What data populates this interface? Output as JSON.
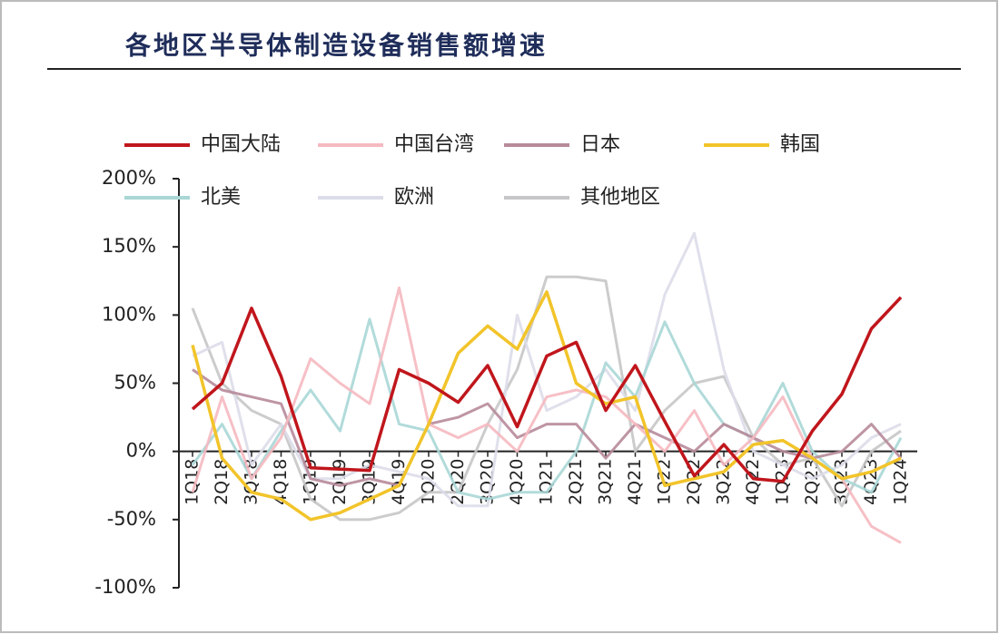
{
  "chart_data": {
    "type": "line",
    "title": "各地区半导体制造设备销售额增速",
    "categories": [
      "1Q18",
      "2Q18",
      "3Q18",
      "4Q18",
      "1Q19",
      "2Q19",
      "3Q19",
      "4Q19",
      "1Q20",
      "2Q20",
      "3Q20",
      "4Q20",
      "1Q21",
      "2Q21",
      "3Q21",
      "4Q21",
      "1Q22",
      "2Q22",
      "3Q22",
      "4Q22",
      "1Q23",
      "2Q23",
      "3Q23",
      "4Q23",
      "1Q24"
    ],
    "ylim": [
      -100,
      200
    ],
    "yticks": [
      {
        "value": -100,
        "label": "-100%"
      },
      {
        "value": -50,
        "label": "-50%"
      },
      {
        "value": 0,
        "label": "0%"
      },
      {
        "value": 50,
        "label": "50%"
      },
      {
        "value": 100,
        "label": "100%"
      },
      {
        "value": 150,
        "label": "150%"
      },
      {
        "value": 200,
        "label": "200%"
      }
    ],
    "series": [
      {
        "name": "中国大陆",
        "color": "#c0161c",
        "values": [
          31,
          50,
          105,
          55,
          -12,
          -13,
          -14,
          60,
          50,
          36,
          63,
          18,
          70,
          80,
          30,
          63,
          22,
          -18,
          5,
          -20,
          -22,
          15,
          42,
          90,
          113
        ]
      },
      {
        "name": "中国台湾",
        "color": "#f5b9c0",
        "values": [
          -30,
          40,
          -20,
          10,
          68,
          50,
          35,
          120,
          20,
          10,
          20,
          0,
          40,
          45,
          40,
          20,
          0,
          30,
          -10,
          10,
          40,
          -5,
          -20,
          -55,
          -67
        ]
      },
      {
        "name": "日本",
        "color": "#b78a9a",
        "values": [
          60,
          45,
          40,
          35,
          -20,
          -25,
          -20,
          -25,
          20,
          25,
          35,
          10,
          20,
          20,
          -5,
          20,
          10,
          0,
          20,
          10,
          0,
          -5,
          0,
          20,
          -5
        ]
      },
      {
        "name": "韩国",
        "color": "#f2c42a",
        "values": [
          78,
          -5,
          -30,
          -35,
          -50,
          -45,
          -35,
          -25,
          20,
          72,
          92,
          75,
          117,
          50,
          35,
          40,
          -25,
          -20,
          -15,
          5,
          8,
          -5,
          -20,
          -15,
          -5
        ]
      },
      {
        "name": "北美",
        "color": "#a9d7d6",
        "values": [
          -10,
          20,
          -20,
          15,
          45,
          15,
          97,
          20,
          15,
          -30,
          -35,
          -30,
          -30,
          0,
          65,
          40,
          95,
          50,
          20,
          10,
          50,
          0,
          -20,
          -30,
          10
        ]
      },
      {
        "name": "欧洲",
        "color": "#dcdde9",
        "values": [
          70,
          80,
          -10,
          20,
          -20,
          -20,
          -10,
          -15,
          -20,
          -40,
          -40,
          100,
          30,
          40,
          60,
          30,
          115,
          160,
          60,
          0,
          -10,
          -20,
          -10,
          10,
          20
        ]
      },
      {
        "name": "其他地区",
        "color": "#c6c6c8",
        "values": [
          105,
          50,
          30,
          20,
          -35,
          -50,
          -50,
          -45,
          -30,
          -30,
          20,
          60,
          128,
          128,
          125,
          0,
          30,
          50,
          55,
          10,
          -10,
          -5,
          -40,
          0,
          15
        ]
      }
    ]
  }
}
